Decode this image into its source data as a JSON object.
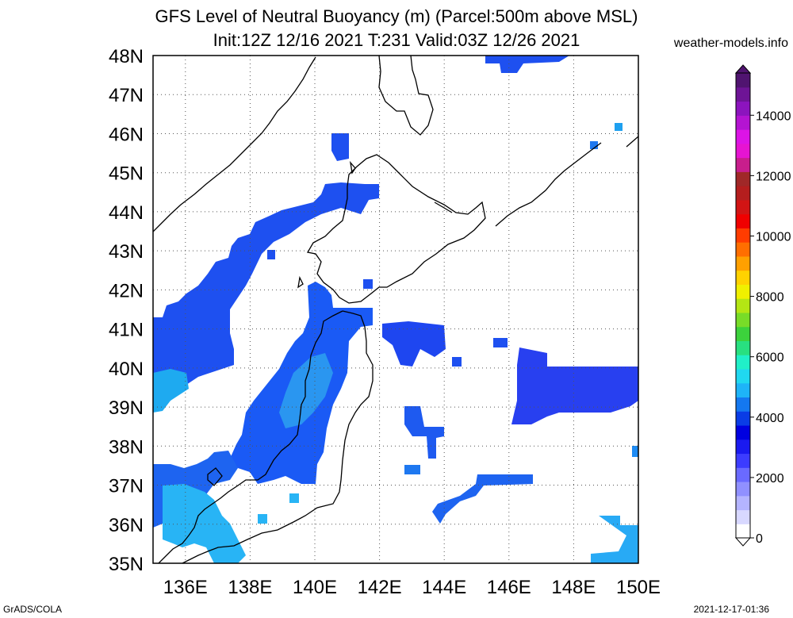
{
  "title": {
    "line1": "GFS Level of Neutral Buoyancy (m) (Parcel:500m above MSL)",
    "line2": "Init:12Z 12/16 2021 T:231 Valid:03Z 12/26 2021"
  },
  "site": "weather-models.info",
  "credit": "GrADS/COLA",
  "timestamp": "2021-12-17-01:36",
  "map": {
    "lat_labels": [
      "48N",
      "47N",
      "46N",
      "45N",
      "44N",
      "43N",
      "42N",
      "41N",
      "40N",
      "39N",
      "38N",
      "37N",
      "36N",
      "35N"
    ],
    "lon_labels": [
      "136E",
      "138E",
      "140E",
      "142E",
      "144E",
      "146E",
      "148E",
      "150E"
    ],
    "lon_range": [
      135,
      150
    ],
    "lat_range": [
      35,
      48
    ]
  },
  "colorbar": {
    "labels": [
      "0",
      "2000",
      "4000",
      "6000",
      "8000",
      "10000",
      "12000",
      "14000"
    ],
    "colors": [
      "#ffffff",
      "#d8d8ff",
      "#b4b4ff",
      "#9090ff",
      "#6a6aff",
      "#3c3cff",
      "#1a1af0",
      "#0000e0",
      "#0a3ce6",
      "#1478f0",
      "#1eb4f8",
      "#20d8f0",
      "#20f0c8",
      "#28e080",
      "#3cd23c",
      "#78dc28",
      "#b4e614",
      "#f0f000",
      "#ffd200",
      "#ffa000",
      "#ff6e00",
      "#ff3c00",
      "#f00000",
      "#d21414",
      "#b41e1e",
      "#a02828",
      "#c81e8c",
      "#e614d2",
      "#dc14e6",
      "#b414d2",
      "#8c14be",
      "#6e1496",
      "#501470"
    ]
  }
}
